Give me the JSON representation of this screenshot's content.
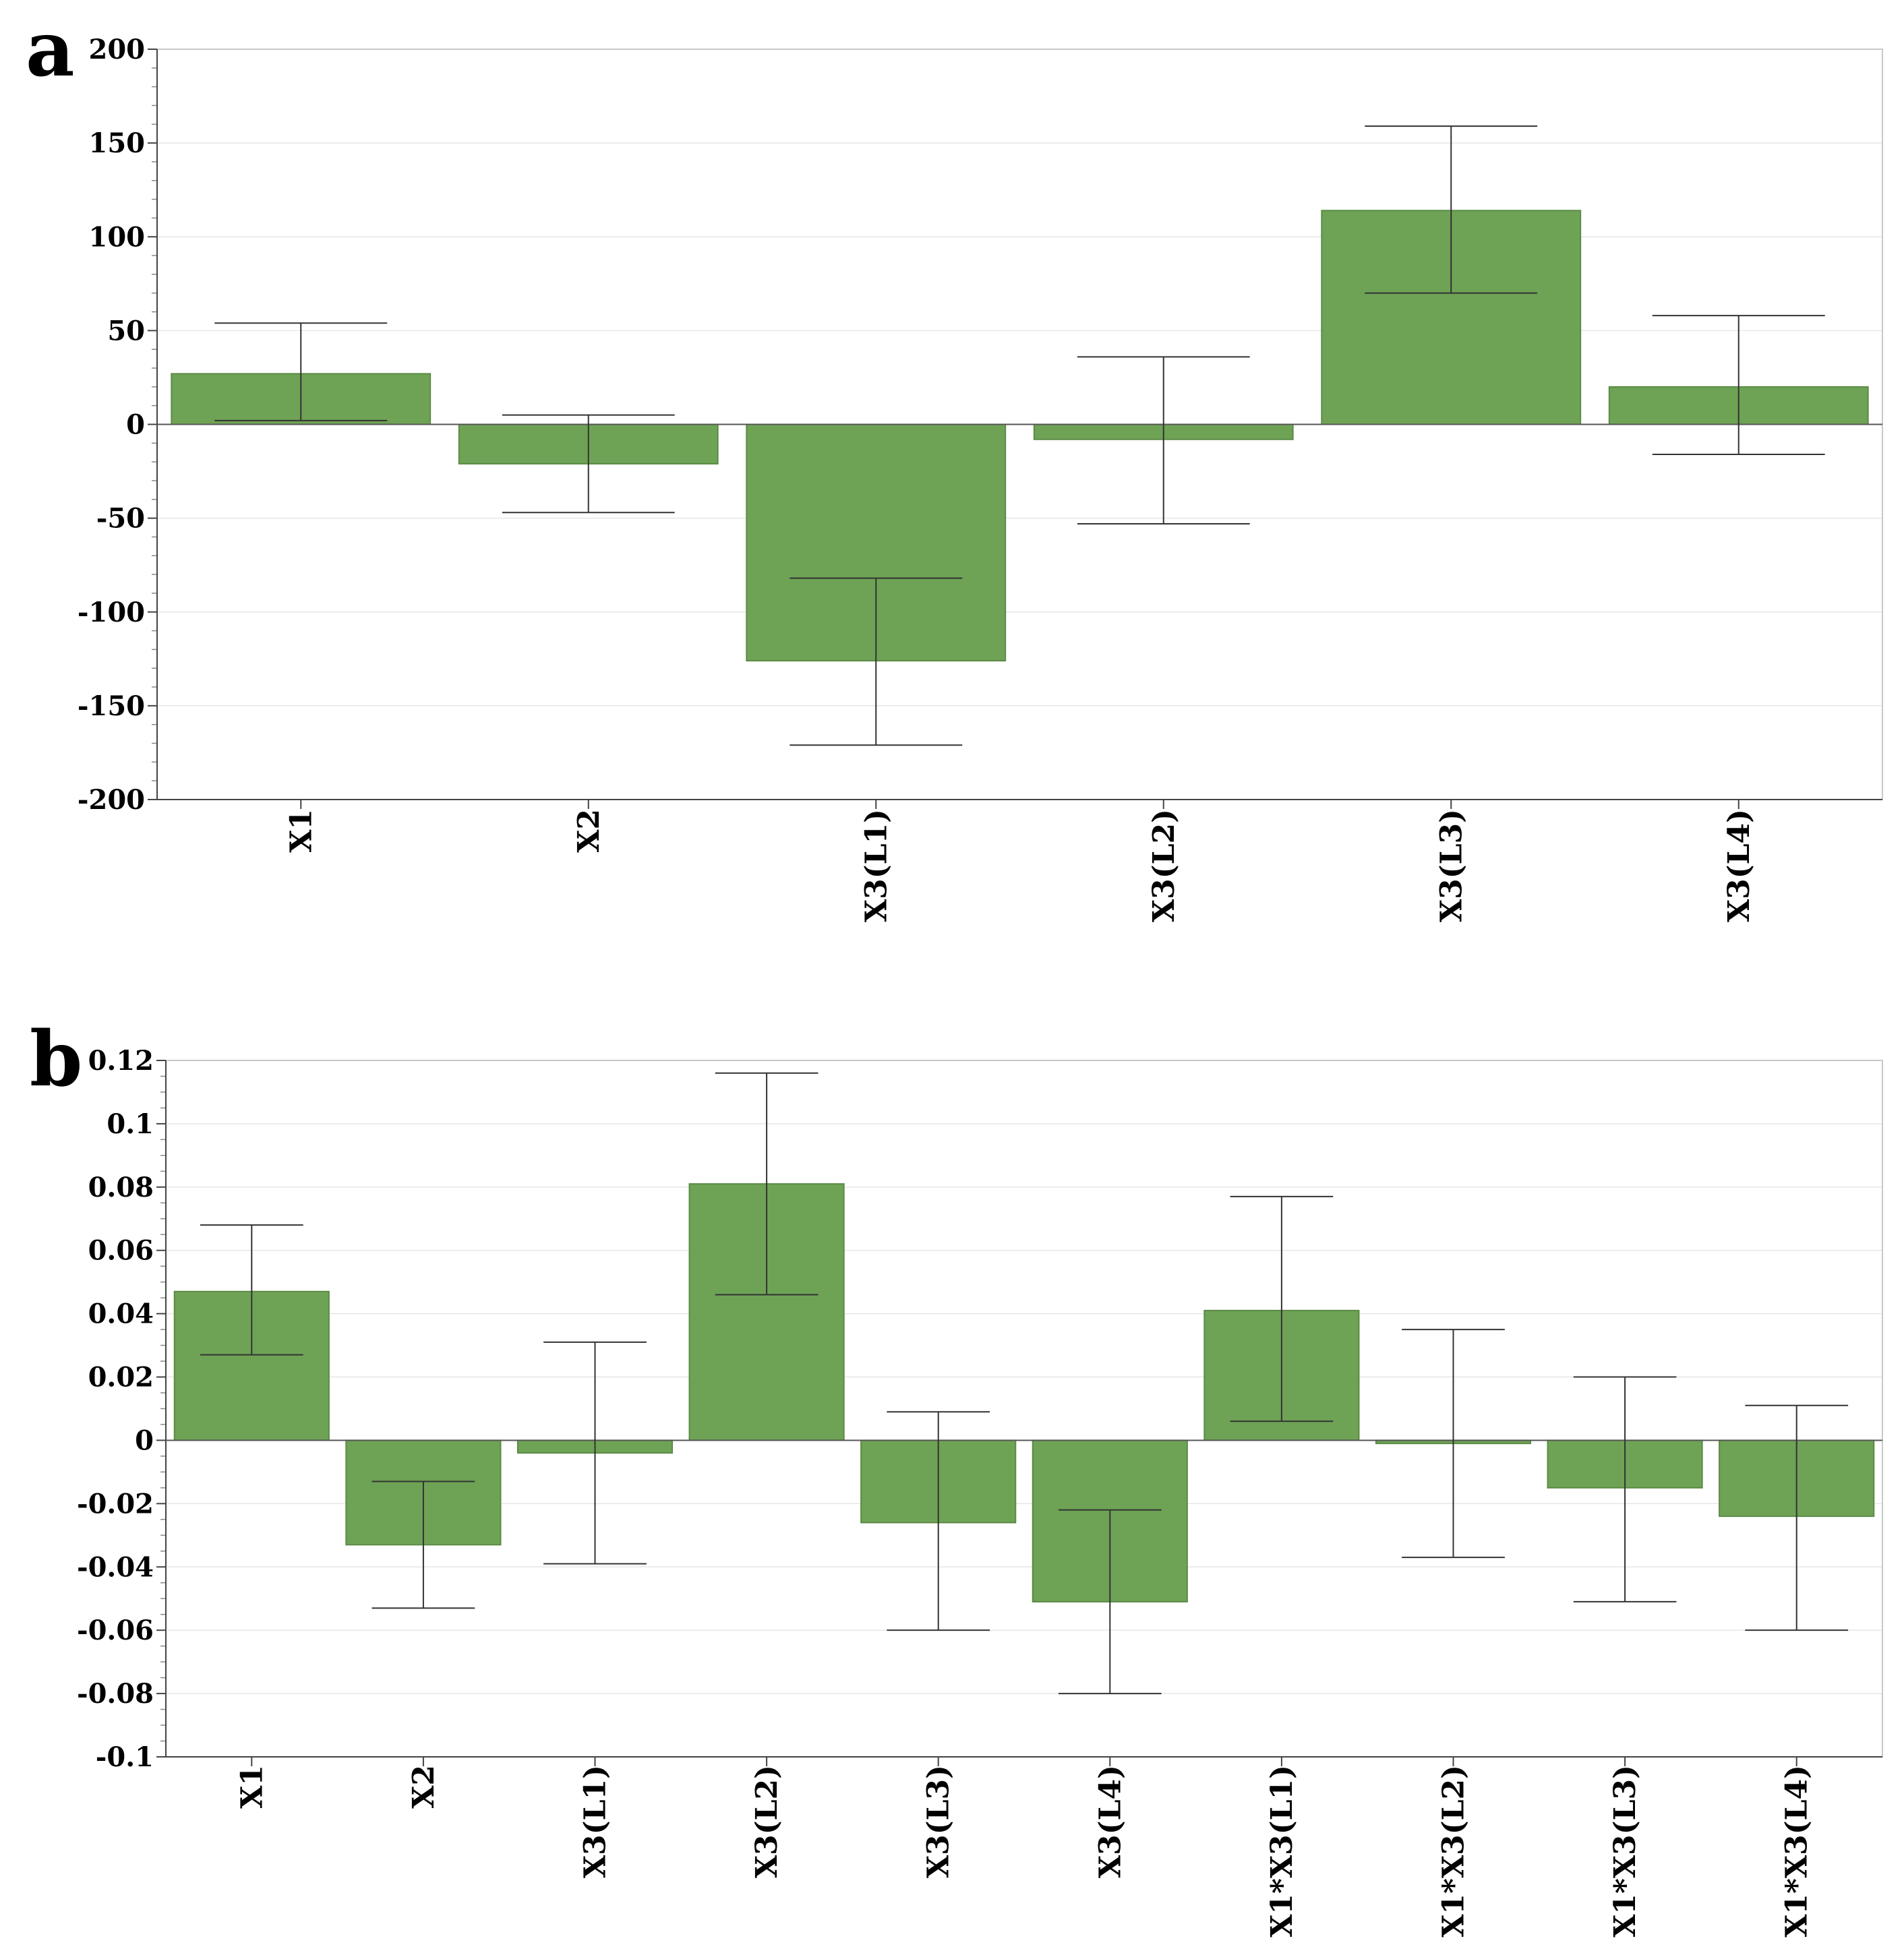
{
  "chart_data": [
    {
      "panel": "a",
      "type": "bar",
      "categories": [
        "X1",
        "X2",
        "X3(L1)",
        "X3(L2)",
        "X3(L3)",
        "X3(L4)"
      ],
      "values": [
        27,
        -21,
        -126,
        -8,
        114,
        20
      ],
      "error_low": [
        2,
        -47,
        -171,
        -53,
        70,
        -16
      ],
      "error_high": [
        54,
        5,
        -82,
        36,
        159,
        58
      ],
      "ylim": [
        -200,
        200
      ],
      "yticks": [
        "200",
        "150",
        "100",
        "50",
        "0",
        "-50",
        "-100",
        "-150",
        "-200"
      ],
      "ytick_values": [
        200,
        150,
        100,
        50,
        0,
        -50,
        -100,
        -150,
        -200
      ],
      "grid": true,
      "bar_color": "#6ea355"
    },
    {
      "panel": "b",
      "type": "bar",
      "categories": [
        "X1",
        "X2",
        "X3(L1)",
        "X3(L2)",
        "X3(L3)",
        "X3(L4)",
        "X1*X3(L1)",
        "X1*X3(L2)",
        "X1*X3(L3)",
        "X1*X3(L4)"
      ],
      "values": [
        0.047,
        -0.033,
        -0.004,
        0.081,
        -0.026,
        -0.051,
        0.041,
        -0.001,
        -0.015,
        -0.024
      ],
      "error_low": [
        0.027,
        -0.053,
        -0.039,
        0.046,
        -0.06,
        -0.08,
        0.006,
        -0.037,
        -0.051,
        -0.06
      ],
      "error_high": [
        0.068,
        -0.013,
        0.031,
        0.116,
        0.009,
        -0.022,
        0.077,
        0.035,
        0.02,
        0.011
      ],
      "ylim": [
        -0.1,
        0.12
      ],
      "yticks": [
        "0.12",
        "0.1",
        "0.08",
        "0.06",
        "0.04",
        "0.02",
        "0",
        "-0.02",
        "-0.04",
        "-0.06",
        "-0.08",
        "-0.1"
      ],
      "ytick_values": [
        0.12,
        0.1,
        0.08,
        0.06,
        0.04,
        0.02,
        0,
        -0.02,
        -0.04,
        -0.06,
        -0.08,
        -0.1
      ],
      "grid": true,
      "bar_color": "#6ea355"
    }
  ]
}
